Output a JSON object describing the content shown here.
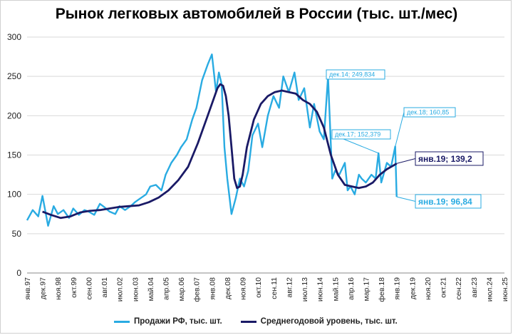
{
  "chart_data": {
    "type": "line",
    "title": "Рынок легковых автомобилей в России (тыс. шт./мес)",
    "ylim": [
      0,
      300
    ],
    "yticks": [
      0,
      50,
      100,
      150,
      200,
      250,
      300
    ],
    "x_tick_labels": [
      "янв.97",
      "дек.97",
      "ноя.98",
      "окт.99",
      "сен.00",
      "авг.01",
      "июл.02",
      "июн.03",
      "май.04",
      "апр.05",
      "мар.06",
      "фев.07",
      "янв.08",
      "дек.08",
      "ноя.09",
      "окт.10",
      "сен.11",
      "авг.12",
      "июл.13",
      "июн.14",
      "май.15",
      "апр.16",
      "мар.17",
      "фев.18",
      "янв.19",
      "дек.19",
      "ноя.20",
      "окт.21",
      "сен.22",
      "авг.23",
      "июл.24",
      "июн.25"
    ],
    "series": [
      {
        "name": "Продажи РФ, тыс. шт.",
        "color": "#29abe2",
        "x": [
          "янв.97",
          "май.97",
          "сен.97",
          "дек.97",
          "апр.98",
          "авг.98",
          "ноя.98",
          "мар.99",
          "июл.99",
          "окт.99",
          "фев.00",
          "июн.00",
          "сен.00",
          "янв.01",
          "май.01",
          "авг.01",
          "дек.01",
          "апр.02",
          "июл.02",
          "ноя.02",
          "мар.03",
          "июн.03",
          "окт.03",
          "фев.04",
          "май.04",
          "сен.04",
          "янв.05",
          "апр.05",
          "авг.05",
          "дек.05",
          "мар.06",
          "июл.06",
          "ноя.06",
          "фев.07",
          "июн.07",
          "окт.07",
          "янв.08",
          "апр.08",
          "июн.08",
          "авг.08",
          "окт.08",
          "дек.08",
          "мар.09",
          "июн.09",
          "сен.09",
          "дек.09",
          "мар.10",
          "июн.10",
          "окт.10",
          "янв.11",
          "май.11",
          "сен.11",
          "янв.12",
          "апр.12",
          "авг.12",
          "дек.12",
          "мар.13",
          "июл.13",
          "ноя.13",
          "фев.14",
          "июн.14",
          "сен.14",
          "дек.14",
          "мар.15",
          "май.15",
          "авг.15",
          "дек.15",
          "фев.16",
          "апр.16",
          "июл.16",
          "окт.16",
          "дек.16",
          "мар.17",
          "июл.17",
          "окт.17",
          "дек.17",
          "фев.18",
          "июн.18",
          "сен.18",
          "дек.18",
          "янв.19"
        ],
        "values": [
          67,
          80,
          72,
          98,
          60,
          85,
          75,
          80,
          70,
          82,
          74,
          80,
          78,
          74,
          88,
          84,
          78,
          75,
          85,
          80,
          85,
          90,
          95,
          100,
          110,
          112,
          105,
          125,
          140,
          150,
          160,
          170,
          195,
          210,
          245,
          265,
          278,
          230,
          255,
          240,
          160,
          120,
          75,
          95,
          120,
          110,
          130,
          175,
          190,
          160,
          200,
          225,
          210,
          250,
          230,
          255,
          220,
          235,
          185,
          215,
          180,
          170,
          249.834,
          120,
          130,
          125,
          140,
          105,
          110,
          100,
          125,
          120,
          115,
          125,
          120,
          152.379,
          115,
          140,
          135,
          160.85,
          96.84
        ]
      },
      {
        "name": "Среднегодовой уровень, тыс. шт.",
        "color": "#1a1a66",
        "x": [
          "дек.97",
          "июн.98",
          "янв.99",
          "авг.99",
          "мар.00",
          "окт.00",
          "май.01",
          "дек.01",
          "июл.02",
          "фев.03",
          "сен.03",
          "апр.04",
          "ноя.04",
          "июн.05",
          "янв.06",
          "авг.06",
          "мар.07",
          "окт.07",
          "май.08",
          "июл.08",
          "сен.08",
          "ноя.08",
          "янв.09",
          "мар.09",
          "май.09",
          "июл.09",
          "сен.09",
          "ноя.09",
          "фев.10",
          "июл.10",
          "дек.10",
          "май.11",
          "окт.11",
          "мар.12",
          "авг.12",
          "янв.13",
          "июн.13",
          "ноя.13",
          "апр.14",
          "сен.14",
          "фев.15",
          "июл.15",
          "дек.15",
          "май.16",
          "окт.16",
          "мар.17",
          "авг.17",
          "янв.18",
          "июн.18",
          "ноя.18",
          "янв.19"
        ],
        "values": [
          78,
          74,
          70,
          72,
          77,
          79,
          80,
          82,
          84,
          85,
          86,
          90,
          96,
          105,
          118,
          135,
          165,
          200,
          235,
          240,
          238,
          225,
          200,
          160,
          120,
          108,
          110,
          125,
          160,
          195,
          215,
          225,
          230,
          232,
          230,
          228,
          220,
          215,
          205,
          185,
          150,
          125,
          112,
          110,
          108,
          110,
          115,
          125,
          132,
          137,
          139.2
        ]
      }
    ],
    "annotations": [
      {
        "text": "дек.14; 249,834",
        "color": "#29abe2"
      },
      {
        "text": "дек.17; 152,379",
        "color": "#29abe2"
      },
      {
        "text": "дек.18; 160,85",
        "color": "#29abe2"
      },
      {
        "text": "янв.19;  139,2",
        "color": "#1a1a66"
      },
      {
        "text": "янв.19; 96,84",
        "color": "#29abe2"
      }
    ]
  }
}
